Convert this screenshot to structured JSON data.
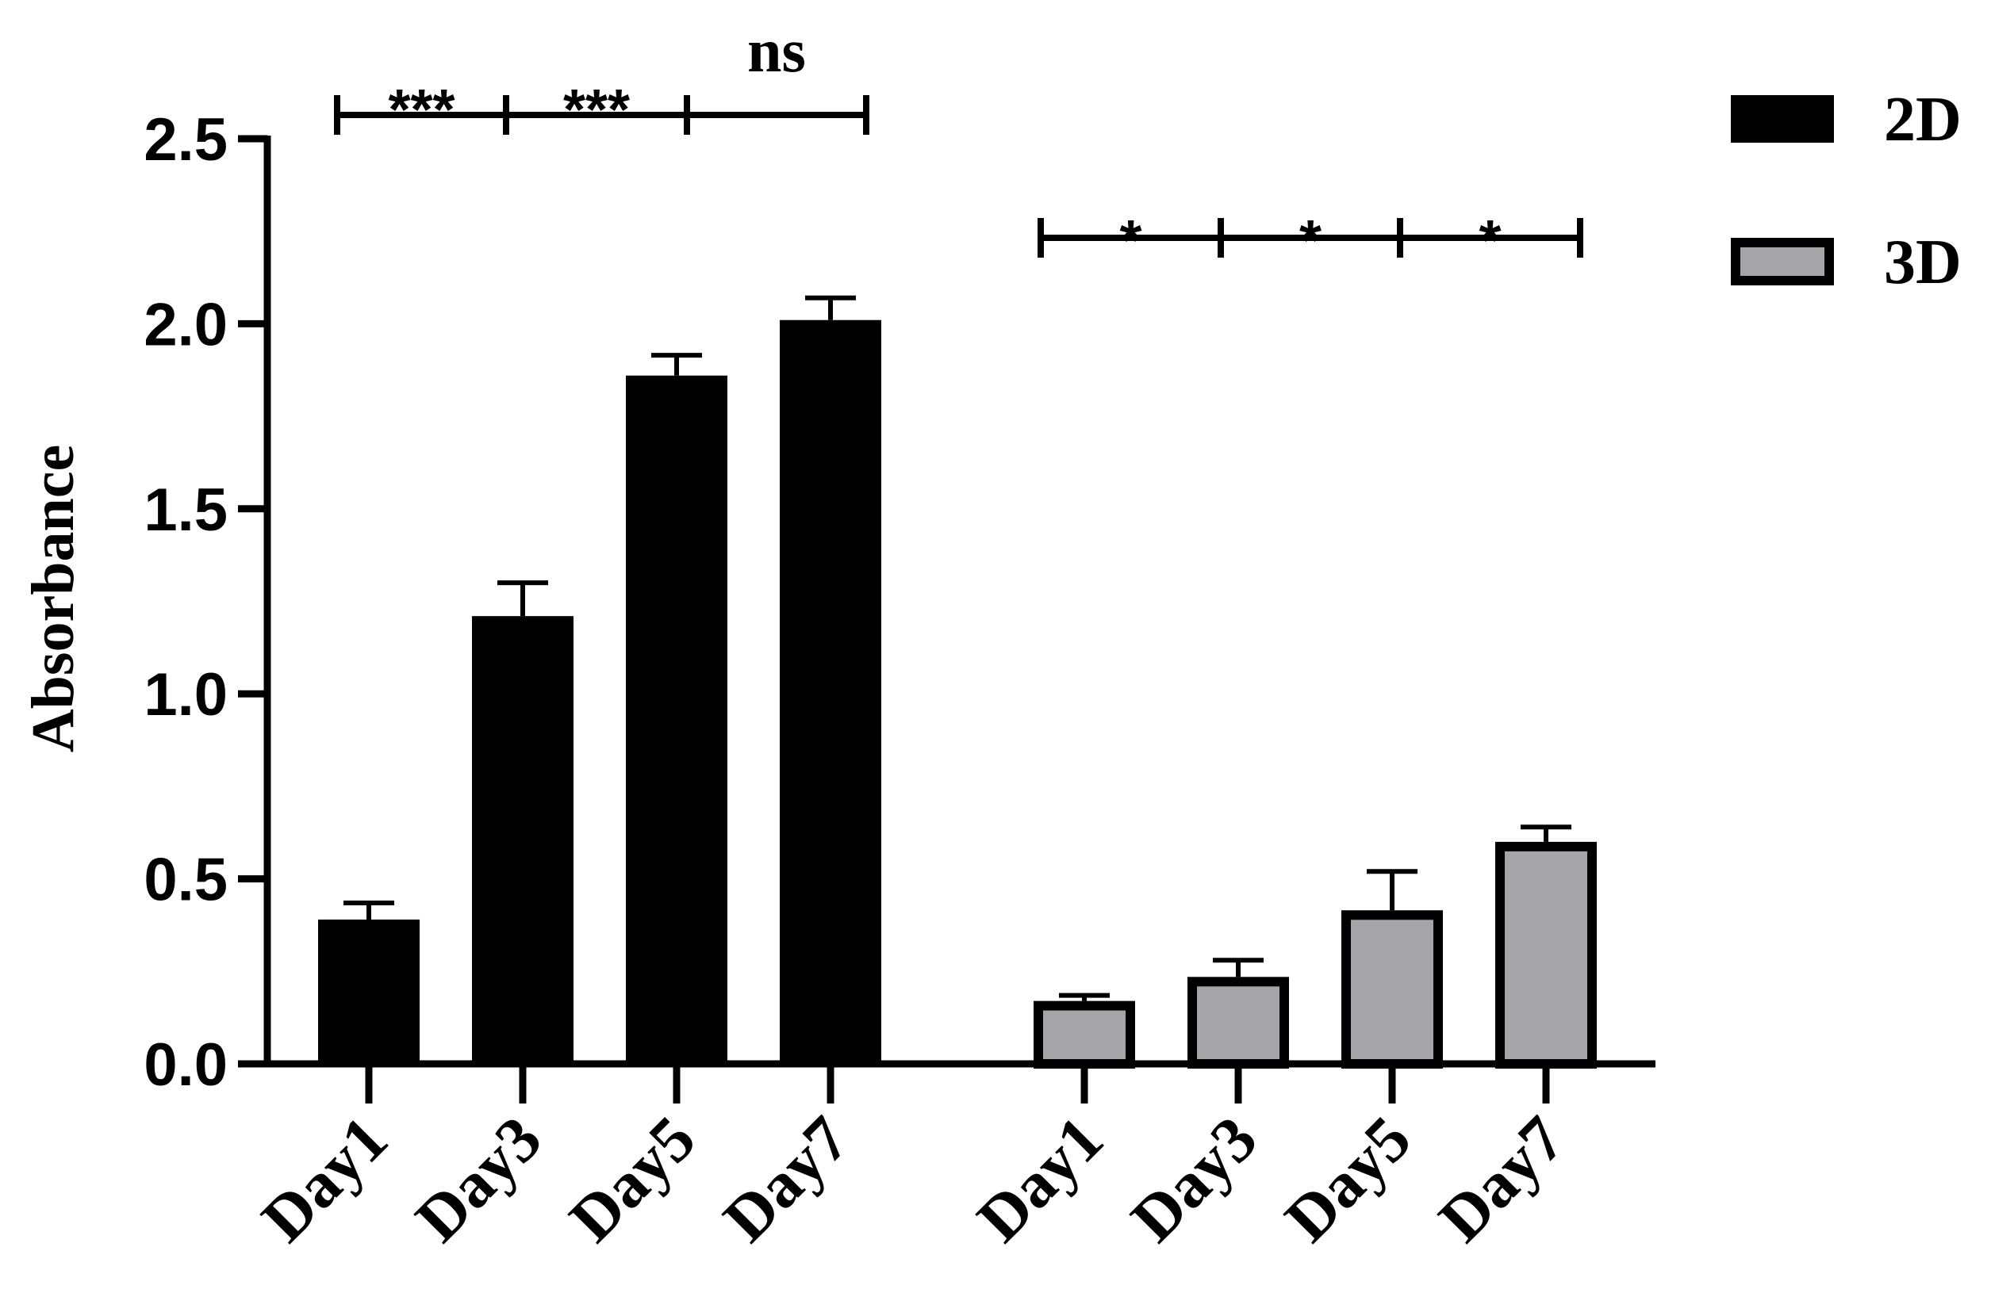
{
  "chart_data": {
    "type": "bar",
    "ylabel": "Absorbance",
    "xlabel": "",
    "ylim": [
      0,
      2.5
    ],
    "yticks": [
      "0.0",
      "0.5",
      "1.0",
      "1.5",
      "2.0",
      "2.5"
    ],
    "grid": false,
    "legend_position": "top-right",
    "groups": [
      {
        "name": "2D",
        "color": "#000000",
        "categories": [
          "Day1",
          "Day3",
          "Day5",
          "Day7"
        ],
        "values": [
          0.39,
          1.21,
          1.86,
          2.01
        ],
        "errors": [
          0.045,
          0.09,
          0.055,
          0.06
        ],
        "comparisons": [
          {
            "from": "Day1",
            "to": "Day3",
            "label": "***"
          },
          {
            "from": "Day3",
            "to": "Day5",
            "label": "***"
          },
          {
            "from": "Day5",
            "to": "Day7",
            "label": "ns"
          }
        ]
      },
      {
        "name": "3D",
        "color": "#a5a5a8",
        "categories": [
          "Day1",
          "Day3",
          "Day5",
          "Day7"
        ],
        "values": [
          0.17,
          0.235,
          0.415,
          0.6
        ],
        "errors": [
          0.015,
          0.045,
          0.105,
          0.04
        ],
        "comparisons": [
          {
            "from": "Day1",
            "to": "Day3",
            "label": "*"
          },
          {
            "from": "Day3",
            "to": "Day5",
            "label": "*"
          },
          {
            "from": "Day5",
            "to": "Day7",
            "label": "*"
          }
        ]
      }
    ],
    "legend": [
      {
        "label": "2D",
        "color": "#000000"
      },
      {
        "label": "3D",
        "color": "#a5a5a8"
      }
    ]
  }
}
